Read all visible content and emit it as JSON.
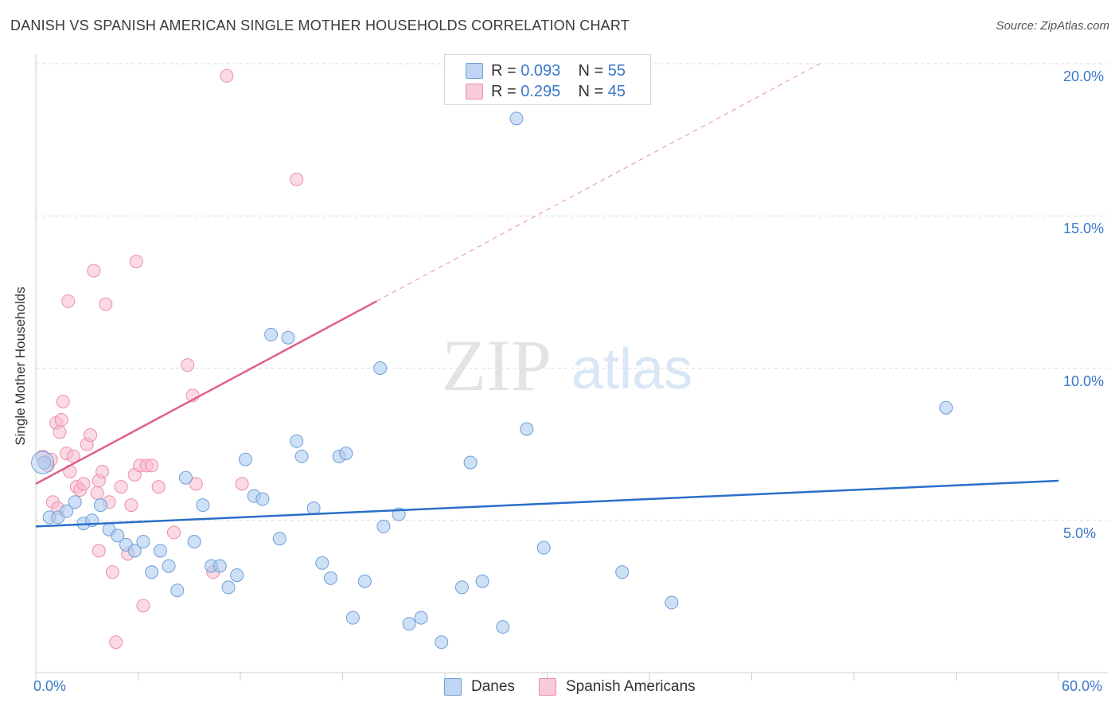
{
  "title": "DANISH VS SPANISH AMERICAN SINGLE MOTHER HOUSEHOLDS CORRELATION CHART",
  "source": "Source: ZipAtlas.com",
  "watermark": {
    "zip": "ZIP",
    "atlas": "atlas"
  },
  "legend": {
    "danes": {
      "r_label": "R = ",
      "r_value": "0.093",
      "n_label": "N = ",
      "n_value": "55"
    },
    "spanish": {
      "r_label": "R = ",
      "r_value": "0.295",
      "n_label": "N = ",
      "n_value": "45"
    }
  },
  "colors": {
    "danes_fill": "#aecbf0",
    "danes_stroke": "#6f9fd8",
    "danes_line": "#2a6fc9",
    "spanish_fill": "#f7bccd",
    "spanish_stroke": "#ec8eab",
    "spanish_line": "#e0608a",
    "grid": "#dcdcdc",
    "axis_text": "#3a78c9"
  },
  "chart_data": {
    "type": "scatter",
    "title": "DANISH VS SPANISH AMERICAN SINGLE MOTHER HOUSEHOLDS CORRELATION CHART",
    "xlabel": "",
    "ylabel": "Single Mother Households",
    "xlim": [
      0,
      60
    ],
    "ylim": [
      0,
      20
    ],
    "x_tick_labels": [
      "0.0%",
      "60.0%"
    ],
    "y_tick_labels": [
      "5.0%",
      "10.0%",
      "15.0%",
      "20.0%"
    ],
    "y_ticks": [
      5,
      10,
      15,
      20
    ],
    "legend_entries": [
      "Danes",
      "Spanish Americans"
    ],
    "series": [
      {
        "name": "Danes",
        "r": 0.093,
        "n": 55,
        "trend": {
          "x": [
            0,
            60
          ],
          "y": [
            4.8,
            6.3
          ]
        },
        "points": [
          [
            0.5,
            6.9
          ],
          [
            0.8,
            5.1
          ],
          [
            1.3,
            5.1
          ],
          [
            1.8,
            5.3
          ],
          [
            2.3,
            5.6
          ],
          [
            2.8,
            4.9
          ],
          [
            3.3,
            5.0
          ],
          [
            3.8,
            5.5
          ],
          [
            4.3,
            4.7
          ],
          [
            4.8,
            4.5
          ],
          [
            5.3,
            4.2
          ],
          [
            5.8,
            4.0
          ],
          [
            6.3,
            4.3
          ],
          [
            6.8,
            3.3
          ],
          [
            7.3,
            4.0
          ],
          [
            7.8,
            3.5
          ],
          [
            8.3,
            2.7
          ],
          [
            8.8,
            6.4
          ],
          [
            9.3,
            4.3
          ],
          [
            9.8,
            5.5
          ],
          [
            10.3,
            3.5
          ],
          [
            10.8,
            3.5
          ],
          [
            11.3,
            2.8
          ],
          [
            11.8,
            3.2
          ],
          [
            12.3,
            7.0
          ],
          [
            12.8,
            5.8
          ],
          [
            13.3,
            5.7
          ],
          [
            13.8,
            11.1
          ],
          [
            14.3,
            4.4
          ],
          [
            14.8,
            11.0
          ],
          [
            15.3,
            7.6
          ],
          [
            15.6,
            7.1
          ],
          [
            16.3,
            5.4
          ],
          [
            16.8,
            3.6
          ],
          [
            17.3,
            3.1
          ],
          [
            17.8,
            7.1
          ],
          [
            18.2,
            7.2
          ],
          [
            18.6,
            1.8
          ],
          [
            19.3,
            3.0
          ],
          [
            20.2,
            10.0
          ],
          [
            20.4,
            4.8
          ],
          [
            21.3,
            5.2
          ],
          [
            21.9,
            1.6
          ],
          [
            22.6,
            1.8
          ],
          [
            23.8,
            1.0
          ],
          [
            25.0,
            2.8
          ],
          [
            25.5,
            6.9
          ],
          [
            26.2,
            3.0
          ],
          [
            27.4,
            1.5
          ],
          [
            28.2,
            18.2
          ],
          [
            28.8,
            8.0
          ],
          [
            29.8,
            4.1
          ],
          [
            34.4,
            3.3
          ],
          [
            37.3,
            2.3
          ],
          [
            53.4,
            8.7
          ]
        ]
      },
      {
        "name": "Spanish Americans",
        "r": 0.295,
        "n": 45,
        "trend": {
          "x": [
            0,
            20
          ],
          "y": [
            6.2,
            12.2
          ]
        },
        "trend_dashed": {
          "x": [
            20,
            46
          ],
          "y": [
            12.2,
            20.0
          ]
        },
        "points": [
          [
            0.4,
            7.1
          ],
          [
            0.7,
            6.8
          ],
          [
            1.0,
            5.6
          ],
          [
            1.2,
            8.2
          ],
          [
            1.4,
            7.9
          ],
          [
            1.5,
            8.3
          ],
          [
            1.6,
            8.9
          ],
          [
            1.8,
            7.2
          ],
          [
            1.9,
            12.2
          ],
          [
            2.0,
            6.6
          ],
          [
            2.2,
            7.1
          ],
          [
            2.4,
            6.1
          ],
          [
            2.6,
            6.0
          ],
          [
            2.8,
            6.2
          ],
          [
            3.0,
            7.5
          ],
          [
            3.2,
            7.8
          ],
          [
            3.4,
            13.2
          ],
          [
            3.6,
            5.9
          ],
          [
            3.7,
            6.3
          ],
          [
            3.9,
            6.6
          ],
          [
            4.1,
            12.1
          ],
          [
            4.3,
            5.6
          ],
          [
            4.5,
            3.3
          ],
          [
            4.7,
            1.0
          ],
          [
            5.0,
            6.1
          ],
          [
            5.4,
            3.9
          ],
          [
            5.6,
            5.5
          ],
          [
            5.8,
            6.5
          ],
          [
            5.9,
            13.5
          ],
          [
            6.1,
            6.8
          ],
          [
            6.3,
            2.2
          ],
          [
            6.5,
            6.8
          ],
          [
            6.8,
            6.8
          ],
          [
            7.2,
            6.1
          ],
          [
            8.1,
            4.6
          ],
          [
            8.9,
            10.1
          ],
          [
            9.2,
            9.1
          ],
          [
            9.4,
            6.2
          ],
          [
            10.4,
            3.3
          ],
          [
            11.2,
            19.6
          ],
          [
            12.1,
            6.2
          ],
          [
            15.3,
            16.2
          ],
          [
            3.7,
            4.0
          ],
          [
            1.3,
            5.4
          ],
          [
            0.9,
            7.0
          ]
        ]
      }
    ]
  }
}
